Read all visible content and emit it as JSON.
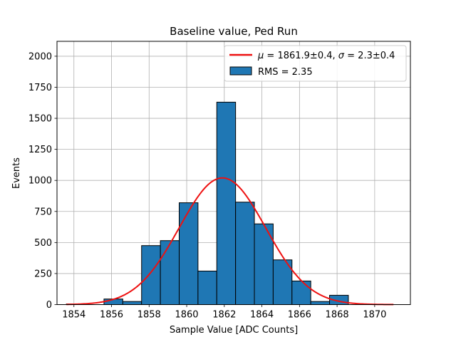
{
  "chart_data": {
    "type": "bar",
    "title": "Baseline value, Ped Run",
    "xlabel": "Sample Value [ADC Counts]",
    "ylabel": "Events",
    "xlim": [
      1853.1,
      1871.9
    ],
    "ylim": [
      0,
      2120
    ],
    "xticks": [
      1854,
      1856,
      1858,
      1860,
      1862,
      1864,
      1866,
      1868,
      1870
    ],
    "yticks": [
      0,
      250,
      500,
      750,
      1000,
      1250,
      1500,
      1750,
      2000
    ],
    "grid": true,
    "legend_position": "upper right",
    "histogram": {
      "name": "RMS = 2.35",
      "bin_edges": [
        1853.6,
        1854.6,
        1855.6,
        1856.6,
        1857.6,
        1858.6,
        1859.6,
        1860.6,
        1861.6,
        1862.6,
        1863.6,
        1864.6,
        1865.6,
        1866.6,
        1867.6,
        1868.6
      ],
      "counts": [
        5,
        0,
        45,
        25,
        475,
        515,
        820,
        270,
        1630,
        825,
        650,
        360,
        190,
        25,
        75
      ],
      "color": "#1f77b4",
      "edgecolor": "#000000"
    },
    "fit": {
      "name": "$\\mu=1861.9\\pm0.4$, $\\sigma=2.3\\pm0.4$",
      "label_mu": "μ",
      "label_mu_value": " = 1861.9±0.4, ",
      "label_sigma": "σ",
      "label_sigma_value": " = 2.3±0.4",
      "type": "gaussian",
      "mu": 1861.9,
      "sigma": 2.3,
      "amplitude": 1020,
      "x_range": [
        1853.6,
        1871.0
      ],
      "color": "#ee1111"
    }
  }
}
